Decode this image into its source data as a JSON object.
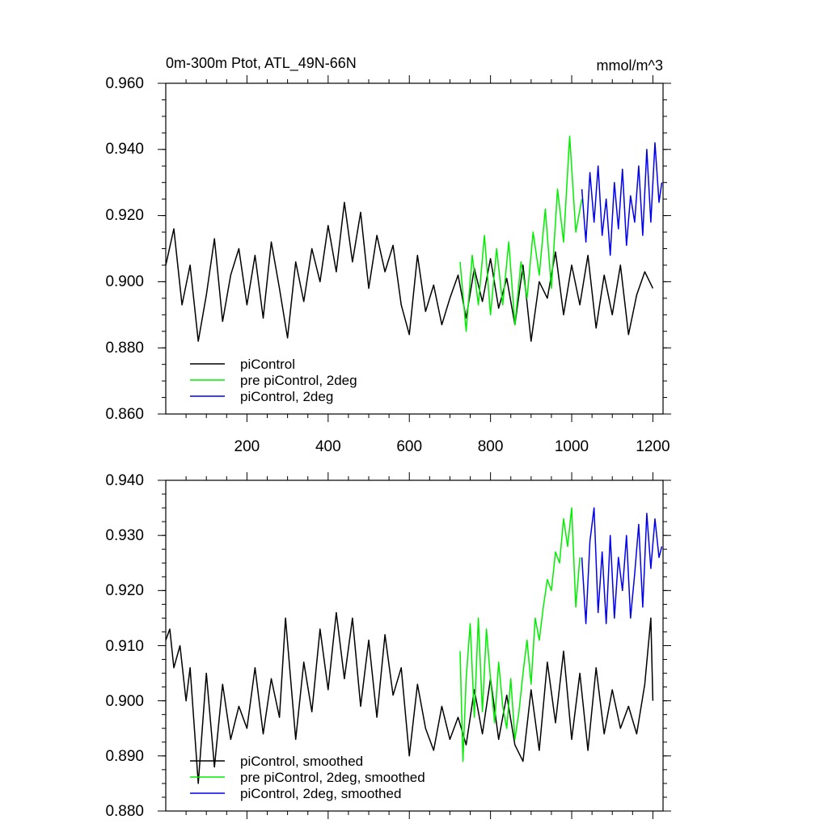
{
  "chart_data": [
    {
      "type": "line",
      "title": "0m-300m Ptot, ATL_49N-66N",
      "units": "mmol/m^3",
      "xlim": [
        0,
        1225
      ],
      "ylim": [
        0.86,
        0.96
      ],
      "xticks": [
        200,
        400,
        600,
        800,
        1000,
        1200
      ],
      "xtick_labels": [
        "200",
        "400",
        "600",
        "800",
        "1000",
        "1200"
      ],
      "yticks": [
        0.86,
        0.88,
        0.9,
        0.92,
        0.94,
        0.96
      ],
      "ytick_labels": [
        "0.860",
        "0.880",
        "0.900",
        "0.920",
        "0.940",
        "0.960"
      ],
      "legend_position": "bottom-left",
      "series": [
        {
          "name": "piControl",
          "color": "#000000",
          "x": [
            0,
            20,
            40,
            60,
            80,
            100,
            120,
            140,
            160,
            180,
            200,
            220,
            240,
            260,
            280,
            300,
            320,
            340,
            360,
            380,
            400,
            420,
            440,
            460,
            480,
            500,
            520,
            540,
            560,
            580,
            600,
            620,
            640,
            660,
            680,
            700,
            720,
            740,
            760,
            780,
            800,
            820,
            840,
            860,
            880,
            900,
            920,
            940,
            960,
            980,
            1000,
            1020,
            1040,
            1060,
            1080,
            1100,
            1120,
            1140,
            1160,
            1180,
            1200
          ],
          "values": [
            0.905,
            0.916,
            0.893,
            0.905,
            0.882,
            0.896,
            0.913,
            0.888,
            0.902,
            0.91,
            0.893,
            0.908,
            0.889,
            0.912,
            0.898,
            0.883,
            0.906,
            0.894,
            0.91,
            0.9,
            0.917,
            0.903,
            0.924,
            0.906,
            0.921,
            0.898,
            0.914,
            0.903,
            0.911,
            0.893,
            0.884,
            0.908,
            0.891,
            0.899,
            0.887,
            0.895,
            0.902,
            0.889,
            0.904,
            0.894,
            0.907,
            0.892,
            0.901,
            0.887,
            0.905,
            0.882,
            0.9,
            0.895,
            0.909,
            0.89,
            0.905,
            0.893,
            0.908,
            0.886,
            0.902,
            0.89,
            0.905,
            0.884,
            0.896,
            0.903,
            0.898
          ]
        },
        {
          "name": "pre piControl, 2deg",
          "color": "#00ee00",
          "x": [
            725,
            740,
            755,
            770,
            785,
            800,
            815,
            830,
            845,
            860,
            875,
            890,
            905,
            920,
            935,
            950,
            965,
            980,
            995,
            1010,
            1025
          ],
          "values": [
            0.906,
            0.885,
            0.908,
            0.893,
            0.914,
            0.89,
            0.91,
            0.893,
            0.912,
            0.887,
            0.906,
            0.895,
            0.915,
            0.902,
            0.922,
            0.898,
            0.928,
            0.912,
            0.944,
            0.915,
            0.925
          ]
        },
        {
          "name": "piControl, 2deg",
          "color": "#0000ee",
          "x": [
            1025,
            1035,
            1045,
            1055,
            1065,
            1075,
            1085,
            1095,
            1105,
            1115,
            1125,
            1135,
            1145,
            1155,
            1165,
            1175,
            1185,
            1195,
            1205,
            1215,
            1222
          ],
          "values": [
            0.928,
            0.912,
            0.933,
            0.918,
            0.935,
            0.914,
            0.925,
            0.908,
            0.93,
            0.916,
            0.934,
            0.911,
            0.926,
            0.918,
            0.935,
            0.914,
            0.94,
            0.918,
            0.942,
            0.924,
            0.93
          ]
        }
      ]
    },
    {
      "type": "line",
      "title": "",
      "units": "",
      "xlim": [
        0,
        1225
      ],
      "ylim": [
        0.88,
        0.94
      ],
      "xticks": [
        200,
        400,
        600,
        800,
        1000,
        1200
      ],
      "yticks": [
        0.88,
        0.89,
        0.9,
        0.91,
        0.92,
        0.93,
        0.94
      ],
      "ytick_labels": [
        "0.880",
        "0.890",
        "0.900",
        "0.910",
        "0.920",
        "0.930",
        "0.940"
      ],
      "legend_position": "bottom-left",
      "series": [
        {
          "name": "piControl, smoothed",
          "color": "#000000",
          "x": [
            0,
            10,
            20,
            35,
            50,
            60,
            80,
            100,
            120,
            140,
            160,
            180,
            200,
            220,
            240,
            260,
            280,
            295,
            320,
            340,
            360,
            380,
            400,
            420,
            440,
            460,
            480,
            500,
            520,
            540,
            560,
            580,
            600,
            620,
            640,
            660,
            680,
            700,
            720,
            740,
            760,
            780,
            800,
            820,
            840,
            860,
            880,
            900,
            920,
            940,
            960,
            980,
            1000,
            1020,
            1040,
            1060,
            1080,
            1100,
            1120,
            1140,
            1160,
            1180,
            1195,
            1200
          ],
          "values": [
            0.911,
            0.913,
            0.906,
            0.91,
            0.9,
            0.906,
            0.885,
            0.905,
            0.888,
            0.903,
            0.893,
            0.899,
            0.895,
            0.906,
            0.894,
            0.904,
            0.897,
            0.915,
            0.893,
            0.907,
            0.898,
            0.913,
            0.902,
            0.916,
            0.904,
            0.915,
            0.899,
            0.911,
            0.897,
            0.912,
            0.901,
            0.906,
            0.89,
            0.903,
            0.895,
            0.891,
            0.899,
            0.893,
            0.897,
            0.892,
            0.902,
            0.894,
            0.904,
            0.893,
            0.901,
            0.892,
            0.889,
            0.902,
            0.891,
            0.907,
            0.896,
            0.909,
            0.893,
            0.905,
            0.891,
            0.906,
            0.894,
            0.902,
            0.895,
            0.899,
            0.894,
            0.903,
            0.915,
            0.9
          ]
        },
        {
          "name": "pre piControl, 2deg, smoothed",
          "color": "#00ee00",
          "x": [
            725,
            732,
            740,
            750,
            760,
            770,
            780,
            790,
            800,
            810,
            820,
            830,
            840,
            850,
            860,
            870,
            880,
            890,
            900,
            910,
            920,
            930,
            940,
            950,
            960,
            970,
            980,
            990,
            1000,
            1010,
            1020
          ],
          "values": [
            0.909,
            0.889,
            0.904,
            0.914,
            0.897,
            0.915,
            0.898,
            0.913,
            0.904,
            0.896,
            0.907,
            0.899,
            0.895,
            0.904,
            0.893,
            0.898,
            0.905,
            0.911,
            0.903,
            0.915,
            0.911,
            0.917,
            0.922,
            0.92,
            0.927,
            0.925,
            0.933,
            0.928,
            0.935,
            0.917,
            0.926
          ]
        },
        {
          "name": "piControl, 2deg, smoothed",
          "color": "#0000ee",
          "x": [
            1025,
            1035,
            1045,
            1055,
            1065,
            1075,
            1085,
            1095,
            1105,
            1115,
            1125,
            1135,
            1145,
            1155,
            1165,
            1175,
            1185,
            1195,
            1205,
            1215,
            1222
          ],
          "values": [
            0.926,
            0.914,
            0.929,
            0.935,
            0.916,
            0.927,
            0.914,
            0.93,
            0.915,
            0.926,
            0.92,
            0.93,
            0.915,
            0.923,
            0.932,
            0.917,
            0.934,
            0.924,
            0.933,
            0.926,
            0.928
          ]
        }
      ]
    }
  ]
}
